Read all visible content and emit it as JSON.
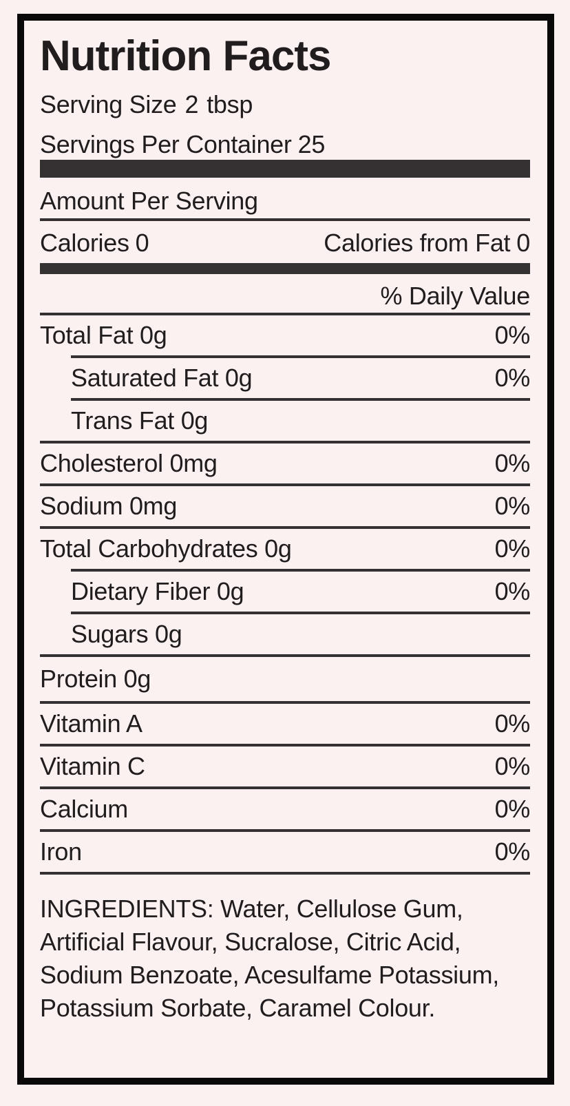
{
  "label": {
    "title": "Nutrition Facts",
    "serving_size": {
      "label": "Serving Size",
      "quantity": "2",
      "unit": "tbsp"
    },
    "servings_per_container": {
      "label": "Servings Per Container",
      "value": "25"
    },
    "amount_per_serving": "Amount Per Serving",
    "calories": {
      "label": "Calories",
      "value": "0"
    },
    "calories_from_fat": {
      "label": "Calories from Fat",
      "value": "0"
    },
    "daily_value_header": "% Daily Value",
    "rows": [
      {
        "label": "Total Fat 0g",
        "percent": "0%",
        "indent": false
      },
      {
        "label": "Saturated Fat 0g",
        "percent": "0%",
        "indent": true
      },
      {
        "label": "Trans Fat 0g",
        "percent": "",
        "indent": true
      },
      {
        "label": "Cholesterol 0mg",
        "percent": "0%",
        "indent": false
      },
      {
        "label": "Sodium 0mg",
        "percent": "0%",
        "indent": false
      },
      {
        "label": "Total Carbohydrates 0g",
        "percent": "0%",
        "indent": false
      },
      {
        "label": "Dietary Fiber 0g",
        "percent": "0%",
        "indent": true
      },
      {
        "label": "Sugars 0g",
        "percent": "",
        "indent": true
      },
      {
        "label": "Protein 0g",
        "percent": "",
        "indent": false
      },
      {
        "label": "Vitamin A",
        "percent": "0%",
        "indent": false
      },
      {
        "label": "Vitamin C",
        "percent": "0%",
        "indent": false
      },
      {
        "label": "Calcium",
        "percent": "0%",
        "indent": false
      },
      {
        "label": "Iron",
        "percent": "0%",
        "indent": false
      }
    ],
    "ingredients": "INGREDIENTS: Water, Cellulose Gum, Artificial Flavour, Sucralose, Citric Acid, Sodium Benzoate, Acesulfame Potassium, Potassium Sorbate, Caramel Colour.",
    "colors": {
      "background": "#faf1f0",
      "border": "#0b0809",
      "text": "#211d1e",
      "divider": "#353132"
    }
  }
}
